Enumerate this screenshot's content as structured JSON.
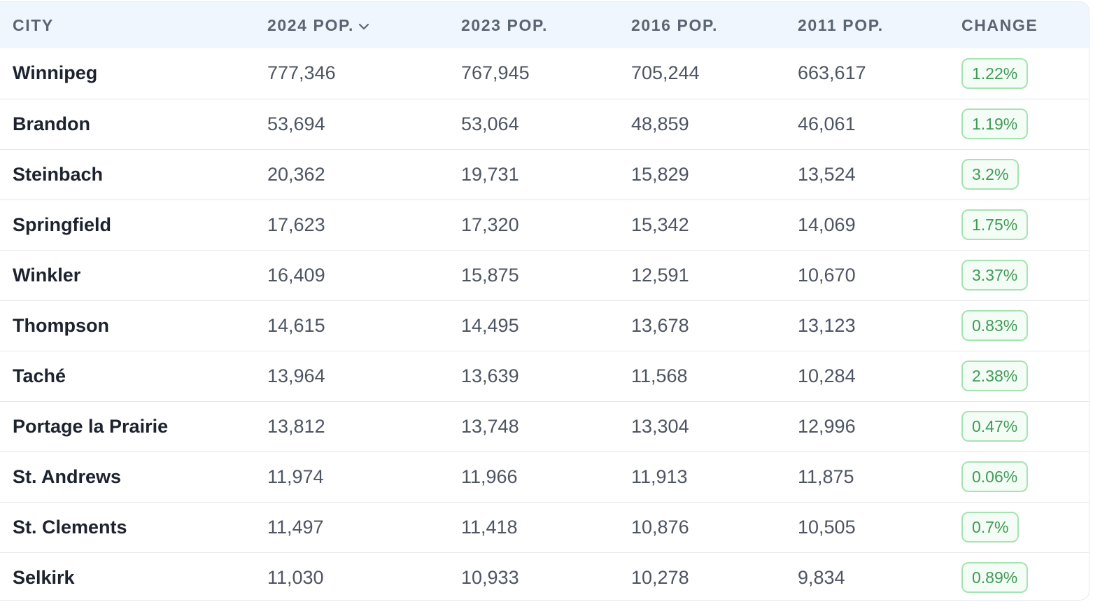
{
  "table": {
    "headers": {
      "city": "CITY",
      "pop_2024": "2024 POP.",
      "pop_2023": "2023 POP.",
      "pop_2016": "2016 POP.",
      "pop_2011": "2011 POP.",
      "change": "CHANGE"
    },
    "sort": {
      "column": "pop_2024",
      "direction": "descending",
      "icon": "chevron-down-icon"
    },
    "colors": {
      "header_bg": "#eff6fd",
      "badge_border": "#a6e3b3",
      "badge_text": "#3f9a57"
    },
    "rows": [
      {
        "city": "Winnipeg",
        "pop_2024": "777,346",
        "pop_2023": "767,945",
        "pop_2016": "705,244",
        "pop_2011": "663,617",
        "change": "1.22%"
      },
      {
        "city": "Brandon",
        "pop_2024": "53,694",
        "pop_2023": "53,064",
        "pop_2016": "48,859",
        "pop_2011": "46,061",
        "change": "1.19%"
      },
      {
        "city": "Steinbach",
        "pop_2024": "20,362",
        "pop_2023": "19,731",
        "pop_2016": "15,829",
        "pop_2011": "13,524",
        "change": "3.2%"
      },
      {
        "city": "Springfield",
        "pop_2024": "17,623",
        "pop_2023": "17,320",
        "pop_2016": "15,342",
        "pop_2011": "14,069",
        "change": "1.75%"
      },
      {
        "city": "Winkler",
        "pop_2024": "16,409",
        "pop_2023": "15,875",
        "pop_2016": "12,591",
        "pop_2011": "10,670",
        "change": "3.37%"
      },
      {
        "city": "Thompson",
        "pop_2024": "14,615",
        "pop_2023": "14,495",
        "pop_2016": "13,678",
        "pop_2011": "13,123",
        "change": "0.83%"
      },
      {
        "city": "Taché",
        "pop_2024": "13,964",
        "pop_2023": "13,639",
        "pop_2016": "11,568",
        "pop_2011": "10,284",
        "change": "2.38%"
      },
      {
        "city": "Portage la Prairie",
        "pop_2024": "13,812",
        "pop_2023": "13,748",
        "pop_2016": "13,304",
        "pop_2011": "12,996",
        "change": "0.47%"
      },
      {
        "city": "St. Andrews",
        "pop_2024": "11,974",
        "pop_2023": "11,966",
        "pop_2016": "11,913",
        "pop_2011": "11,875",
        "change": "0.06%"
      },
      {
        "city": "St. Clements",
        "pop_2024": "11,497",
        "pop_2023": "11,418",
        "pop_2016": "10,876",
        "pop_2011": "10,505",
        "change": "0.7%"
      },
      {
        "city": "Selkirk",
        "pop_2024": "11,030",
        "pop_2023": "10,933",
        "pop_2016": "10,278",
        "pop_2011": "9,834",
        "change": "0.89%"
      }
    ]
  }
}
